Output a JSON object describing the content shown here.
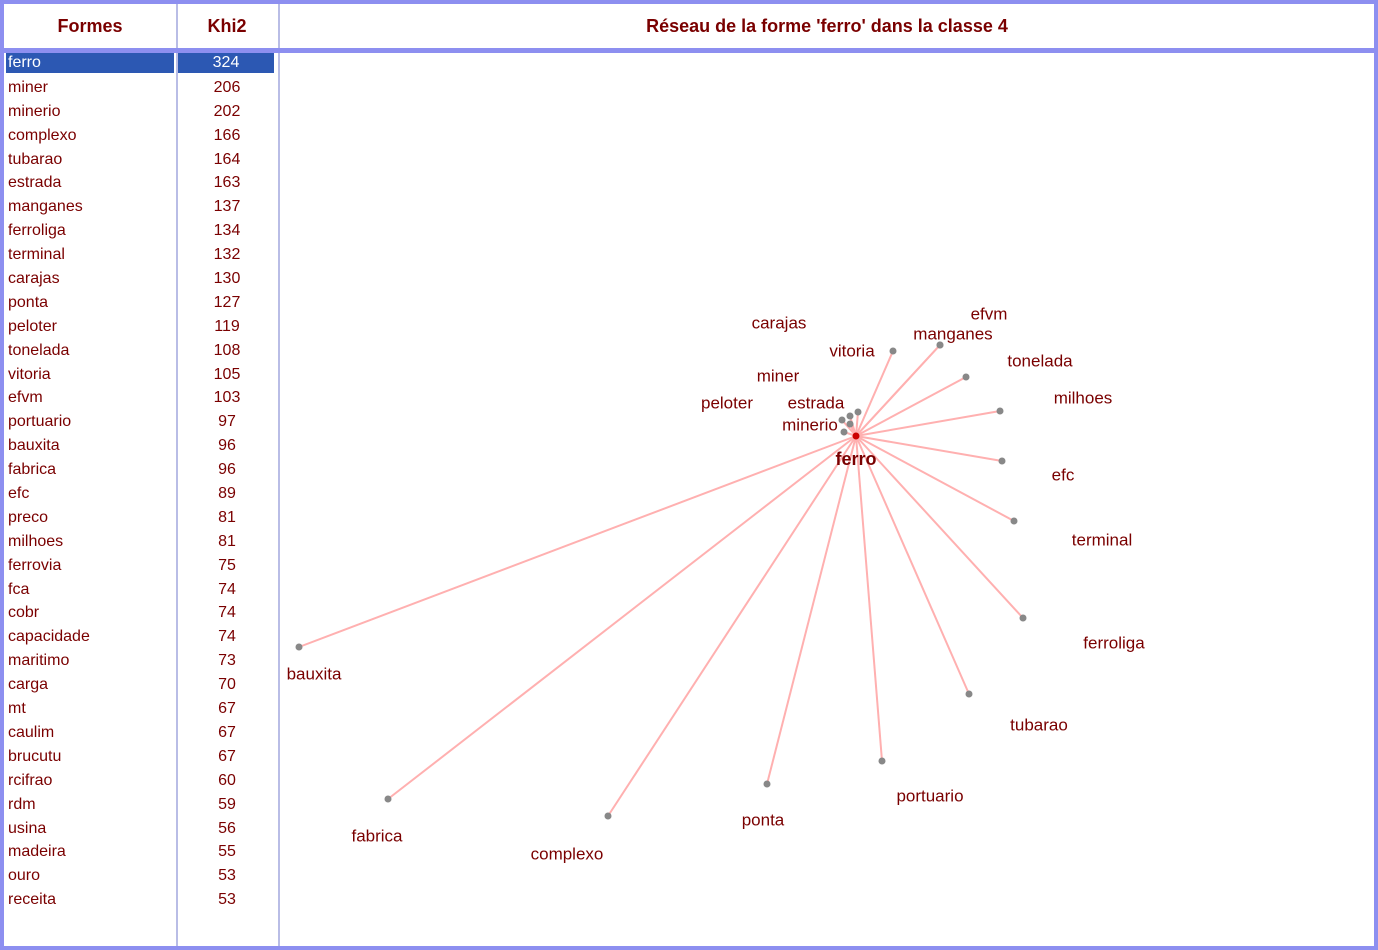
{
  "header": {
    "col_formes": "Formes",
    "col_khi2": "Khi2",
    "title": "Réseau de la forme 'ferro' dans la classe 4"
  },
  "list": [
    {
      "term": "ferro",
      "khi2": "324",
      "selected": true
    },
    {
      "term": "miner",
      "khi2": "206"
    },
    {
      "term": "minerio",
      "khi2": "202"
    },
    {
      "term": "complexo",
      "khi2": "166"
    },
    {
      "term": "tubarao",
      "khi2": "164"
    },
    {
      "term": "estrada",
      "khi2": "163"
    },
    {
      "term": "manganes",
      "khi2": "137"
    },
    {
      "term": "ferroliga",
      "khi2": "134"
    },
    {
      "term": "terminal",
      "khi2": "132"
    },
    {
      "term": "carajas",
      "khi2": "130"
    },
    {
      "term": "ponta",
      "khi2": "127"
    },
    {
      "term": "peloter",
      "khi2": "119"
    },
    {
      "term": "tonelada",
      "khi2": "108"
    },
    {
      "term": "vitoria",
      "khi2": "105"
    },
    {
      "term": "efvm",
      "khi2": "103"
    },
    {
      "term": "portuario",
      "khi2": "97"
    },
    {
      "term": "bauxita",
      "khi2": "96"
    },
    {
      "term": "fabrica",
      "khi2": "96"
    },
    {
      "term": "efc",
      "khi2": "89"
    },
    {
      "term": "preco",
      "khi2": "81"
    },
    {
      "term": "milhoes",
      "khi2": "81"
    },
    {
      "term": "ferrovia",
      "khi2": "75"
    },
    {
      "term": "fca",
      "khi2": "74"
    },
    {
      "term": "cobr",
      "khi2": "74"
    },
    {
      "term": "capacidade",
      "khi2": "74"
    },
    {
      "term": "maritimo",
      "khi2": "73"
    },
    {
      "term": "carga",
      "khi2": "70"
    },
    {
      "term": "mt",
      "khi2": "67"
    },
    {
      "term": "caulim",
      "khi2": "67"
    },
    {
      "term": "brucutu",
      "khi2": "67"
    },
    {
      "term": "rcifrao",
      "khi2": "60"
    },
    {
      "term": "rdm",
      "khi2": "59"
    },
    {
      "term": "usina",
      "khi2": "56"
    },
    {
      "term": "madeira",
      "khi2": "55"
    },
    {
      "term": "ouro",
      "khi2": "53"
    },
    {
      "term": "receita",
      "khi2": "53"
    }
  ],
  "network": {
    "center": "ferro",
    "nodes": [
      "carajas",
      "efvm",
      "vitoria",
      "manganes",
      "tonelada",
      "miner",
      "milhoes",
      "peloter",
      "estrada",
      "minerio",
      "efc",
      "terminal",
      "ferroliga",
      "bauxita",
      "tubarao",
      "portuario",
      "ponta",
      "fabrica",
      "complexo"
    ],
    "colors": {
      "text": "#7a0000",
      "edge": "#ffb0b0",
      "node": "#888888",
      "center_dot": "#cc0000",
      "selection": "#2c58b3",
      "border": "#8d8ff0"
    }
  }
}
